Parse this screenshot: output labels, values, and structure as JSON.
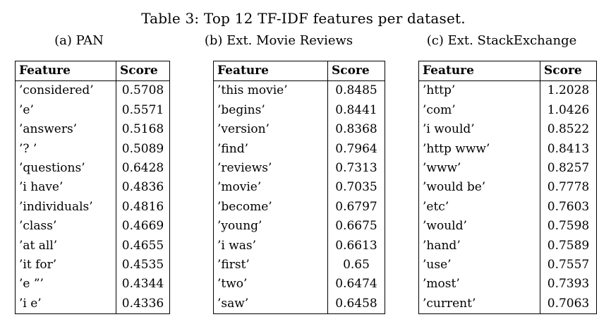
{
  "figure": {
    "title": "Table 3: Top 12 TF-IDF features per dataset."
  },
  "colors": {
    "background": "#ffffff",
    "text": "#000000",
    "table_border": "#000000"
  },
  "tables": [
    {
      "caption": "(a) PAN",
      "headers": [
        "Feature",
        "Score"
      ],
      "rows": [
        {
          "feature": "’considered’",
          "score": "0.5708"
        },
        {
          "feature": "’e’",
          "score": "0.5571"
        },
        {
          "feature": "’answers’",
          "score": "0.5168"
        },
        {
          "feature": "’? ’",
          "score": "0.5089"
        },
        {
          "feature": "’questions’",
          "score": "0.6428"
        },
        {
          "feature": "’i have’",
          "score": "0.4836"
        },
        {
          "feature": "’individuals’",
          "score": "0.4816"
        },
        {
          "feature": "’class’",
          "score": "0.4669"
        },
        {
          "feature": "’at all’",
          "score": "0.4655"
        },
        {
          "feature": "’it for’",
          "score": "0.4535"
        },
        {
          "feature": "’e ”’",
          "score": "0.4344"
        },
        {
          "feature": "’i e’",
          "score": "0.4336"
        }
      ]
    },
    {
      "caption": "(b) Ext. Movie Reviews",
      "headers": [
        "Feature",
        "Score"
      ],
      "rows": [
        {
          "feature": "’this movie’",
          "score": "0.8485"
        },
        {
          "feature": "’begins’",
          "score": "0.8441"
        },
        {
          "feature": "’version’",
          "score": "0.8368"
        },
        {
          "feature": "’find’",
          "score": "0.7964"
        },
        {
          "feature": "’reviews’",
          "score": "0.7313"
        },
        {
          "feature": "’movie’",
          "score": "0.7035"
        },
        {
          "feature": "’become’",
          "score": "0.6797"
        },
        {
          "feature": "’young’",
          "score": "0.6675"
        },
        {
          "feature": "’i was’",
          "score": "0.6613"
        },
        {
          "feature": "’first’",
          "score": "0.65"
        },
        {
          "feature": "’two’",
          "score": "0.6474"
        },
        {
          "feature": "’saw’",
          "score": "0.6458"
        }
      ]
    },
    {
      "caption": "(c) Ext. StackExchange",
      "headers": [
        "Feature",
        "Score"
      ],
      "rows": [
        {
          "feature": "’http’",
          "score": "1.2028"
        },
        {
          "feature": "’com’",
          "score": "1.0426"
        },
        {
          "feature": "’i would’",
          "score": "0.8522"
        },
        {
          "feature": "’http www’",
          "score": "0.8413"
        },
        {
          "feature": "’www’",
          "score": "0.8257"
        },
        {
          "feature": "’would be’",
          "score": "0.7778"
        },
        {
          "feature": "’etc’",
          "score": "0.7603"
        },
        {
          "feature": "’would’",
          "score": "0.7598"
        },
        {
          "feature": "’hand’",
          "score": "0.7589"
        },
        {
          "feature": "’use’",
          "score": "0.7557"
        },
        {
          "feature": "’most’",
          "score": "0.7393"
        },
        {
          "feature": "’current’",
          "score": "0.7063"
        }
      ]
    }
  ]
}
